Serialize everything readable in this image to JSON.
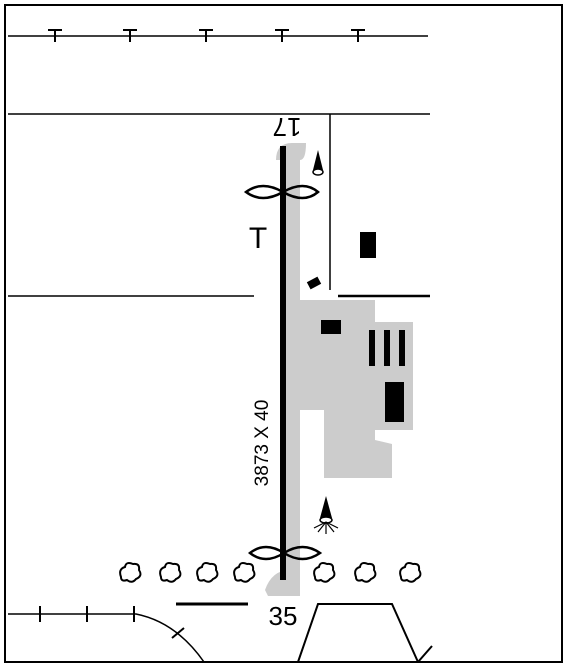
{
  "runway": {
    "dimensions": "3873 X 40",
    "north_end_number": "17",
    "south_end_number": "35"
  },
  "markers": {
    "tee_symbol": "T",
    "power_line_tee": "T"
  },
  "colors": {
    "apron": "#cccccc",
    "runway": "#000000",
    "border": "#000000",
    "background": "#ffffff"
  },
  "icons": [
    "runway-end-light-icon",
    "lighted-windsock-icon",
    "wind-tee-icon",
    "tree-icon",
    "building-icon",
    "hangar-icon",
    "threshold-lights-icon",
    "power-line-icon",
    "fence-icon"
  ]
}
